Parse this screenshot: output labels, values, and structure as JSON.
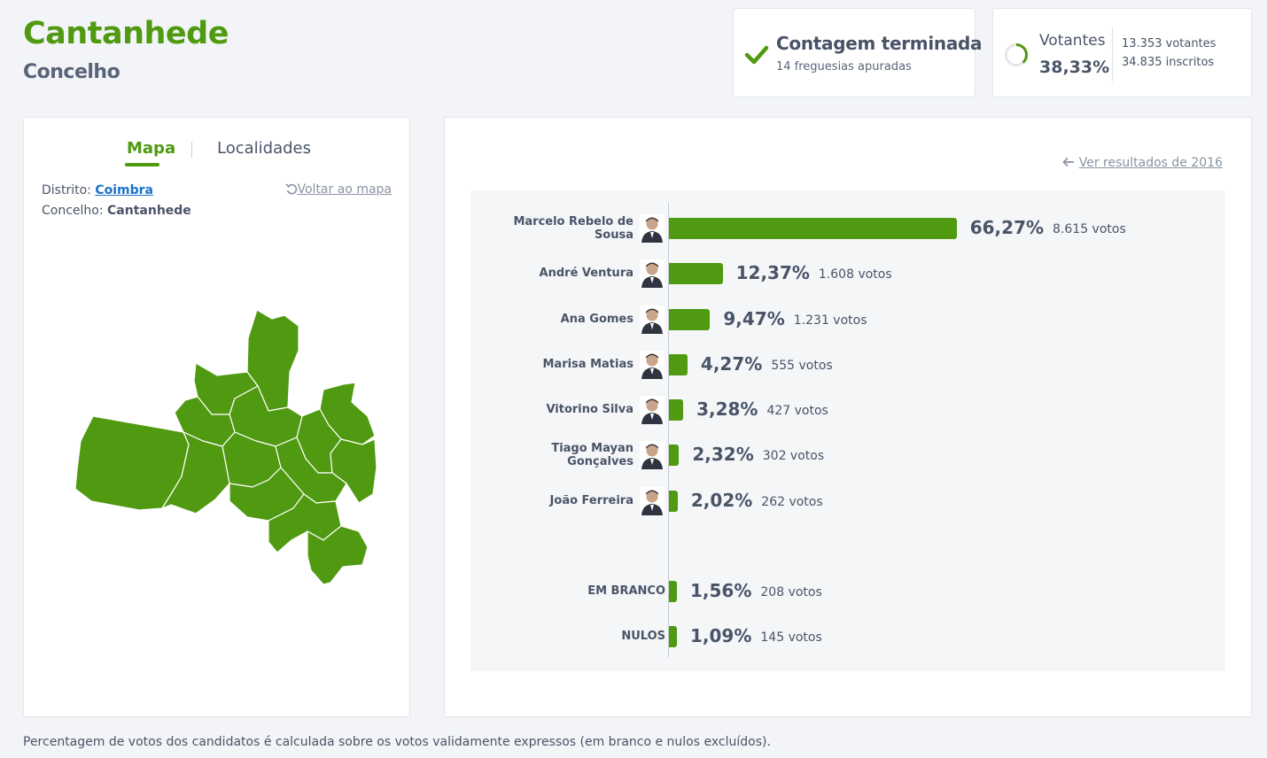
{
  "header": {
    "title": "Cantanhede",
    "subtitle": "Concelho"
  },
  "status": {
    "title": "Contagem terminada",
    "subtitle": "14 freguesias apuradas",
    "accent": "#4f9a10"
  },
  "turnout": {
    "label": "Votantes",
    "percent": "38,33%",
    "voters": "13.353 votantes",
    "registered": "34.835 inscritos",
    "fraction": 0.3833
  },
  "map_panel": {
    "tabs": [
      {
        "label": "Mapa",
        "active": true
      },
      {
        "label": "Localidades",
        "active": false
      }
    ],
    "district_label": "Distrito:",
    "district_value": "Coimbra",
    "municipality_label": "Concelho:",
    "municipality_value": "Cantanhede",
    "back_link": "Voltar ao mapa",
    "fill_color": "#4f9a10"
  },
  "results": {
    "prev_link": "Ver resultados de 2016",
    "bar_color": "#4f9a10",
    "candidates": [
      {
        "name": "Marcelo Rebelo de Sousa",
        "name_lines": [
          "Marcelo Rebelo de",
          "Sousa"
        ],
        "percent": "66,27%",
        "value": 66.27,
        "votes": "8.615 votos",
        "avatar": "avatar-icon"
      },
      {
        "name": "André Ventura",
        "name_lines": [
          "André Ventura"
        ],
        "percent": "12,37%",
        "value": 12.37,
        "votes": "1.608 votos",
        "avatar": "avatar-icon"
      },
      {
        "name": "Ana Gomes",
        "name_lines": [
          "Ana Gomes"
        ],
        "percent": "9,47%",
        "value": 9.47,
        "votes": "1.231 votos",
        "avatar": "avatar-icon"
      },
      {
        "name": "Marisa Matias",
        "name_lines": [
          "Marisa Matias"
        ],
        "percent": "4,27%",
        "value": 4.27,
        "votes": "555 votos",
        "avatar": "avatar-icon"
      },
      {
        "name": "Vitorino Silva",
        "name_lines": [
          "Vitorino Silva"
        ],
        "percent": "3,28%",
        "value": 3.28,
        "votes": "427 votos",
        "avatar": "avatar-icon"
      },
      {
        "name": "Tiago Mayan Gonçalves",
        "name_lines": [
          "Tiago Mayan",
          "Gonçalves"
        ],
        "percent": "2,32%",
        "value": 2.32,
        "votes": "302 votos",
        "avatar": "avatar-icon"
      },
      {
        "name": "João Ferreira",
        "name_lines": [
          "João Ferreira"
        ],
        "percent": "2,02%",
        "value": 2.02,
        "votes": "262 votos",
        "avatar": "avatar-icon"
      }
    ],
    "others": [
      {
        "name": "EM BRANCO",
        "percent": "1,56%",
        "value": 1.56,
        "votes": "208 votos"
      },
      {
        "name": "NULOS",
        "percent": "1,09%",
        "value": 1.09,
        "votes": "145 votos"
      }
    ]
  },
  "footnote": "Percentagem de votos dos candidatos é calculada sobre os votos validamente expressos (em branco e nulos excluídos)."
}
